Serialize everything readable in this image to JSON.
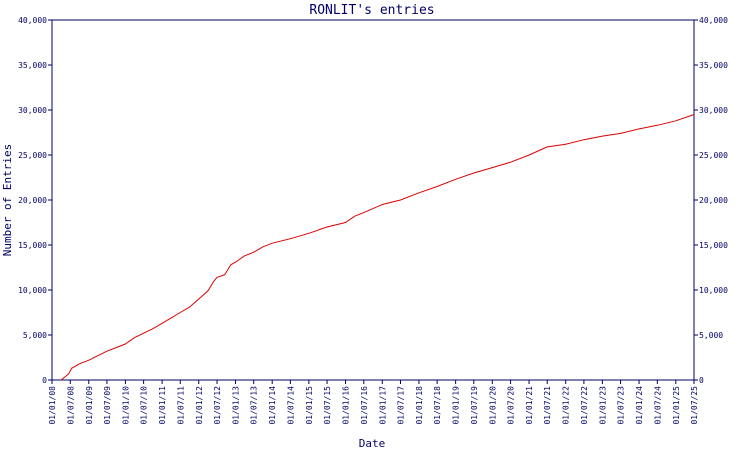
{
  "chart_data": {
    "type": "line",
    "title": "RONLIT's entries",
    "xlabel": "Date",
    "ylabel": "Number of Entries",
    "xlim": [
      "2008-01-01",
      "2025-07-01"
    ],
    "ylim": [
      0,
      40000
    ],
    "y_ticks": [
      0,
      5000,
      10000,
      15000,
      20000,
      25000,
      30000,
      35000,
      40000
    ],
    "y_tick_labels": [
      "0",
      "5,000",
      "10,000",
      "15,000",
      "20,000",
      "25,000",
      "30,000",
      "35,000",
      "40,000"
    ],
    "y_axis_sides": "left-and-right",
    "x_ticks": [
      "2008-01-01",
      "2008-07-01",
      "2009-01-01",
      "2009-07-01",
      "2010-01-01",
      "2010-07-01",
      "2011-01-01",
      "2011-07-01",
      "2012-01-01",
      "2012-07-01",
      "2013-01-01",
      "2013-07-01",
      "2014-01-01",
      "2014-07-01",
      "2015-01-01",
      "2015-07-01",
      "2016-01-01",
      "2016-07-01",
      "2017-01-01",
      "2017-07-01",
      "2018-01-01",
      "2018-07-01",
      "2019-01-01",
      "2019-07-01",
      "2020-01-01",
      "2020-07-01",
      "2021-01-01",
      "2021-07-01",
      "2022-01-01",
      "2022-07-01",
      "2023-01-01",
      "2023-07-01",
      "2024-01-01",
      "2024-07-01",
      "2025-01-01",
      "2025-07-01"
    ],
    "x_tick_labels": [
      "01/01/08",
      "01/07/08",
      "01/01/09",
      "01/07/09",
      "01/01/10",
      "01/07/10",
      "01/01/11",
      "01/07/11",
      "01/01/12",
      "01/07/12",
      "01/01/13",
      "01/07/13",
      "01/01/14",
      "01/07/14",
      "01/01/15",
      "01/07/15",
      "01/01/16",
      "01/07/16",
      "01/01/17",
      "01/07/17",
      "01/01/18",
      "01/07/18",
      "01/01/19",
      "01/07/19",
      "01/01/20",
      "01/07/20",
      "01/01/21",
      "01/07/21",
      "01/01/22",
      "01/07/22",
      "01/01/23",
      "01/07/23",
      "01/01/24",
      "01/07/24",
      "01/01/25",
      "01/07/25"
    ],
    "grid": false,
    "legend": "none",
    "series": [
      {
        "color": "#dd0000",
        "points": [
          [
            "2008-04-01",
            0
          ],
          [
            "2008-05-15",
            400
          ],
          [
            "2008-06-15",
            700
          ],
          [
            "2008-07-15",
            1300
          ],
          [
            "2008-10-01",
            1800
          ],
          [
            "2009-01-01",
            2200
          ],
          [
            "2009-04-01",
            2700
          ],
          [
            "2009-07-01",
            3200
          ],
          [
            "2009-10-01",
            3600
          ],
          [
            "2010-01-01",
            4000
          ],
          [
            "2010-04-01",
            4700
          ],
          [
            "2010-07-01",
            5200
          ],
          [
            "2010-10-01",
            5700
          ],
          [
            "2011-01-01",
            6300
          ],
          [
            "2011-04-01",
            6900
          ],
          [
            "2011-07-01",
            7500
          ],
          [
            "2011-10-01",
            8100
          ],
          [
            "2012-01-01",
            9000
          ],
          [
            "2012-04-01",
            9900
          ],
          [
            "2012-06-01",
            11000
          ],
          [
            "2012-07-01",
            11400
          ],
          [
            "2012-09-15",
            11700
          ],
          [
            "2012-11-15",
            12800
          ],
          [
            "2013-01-01",
            13100
          ],
          [
            "2013-04-01",
            13800
          ],
          [
            "2013-07-01",
            14200
          ],
          [
            "2013-10-01",
            14800
          ],
          [
            "2014-01-01",
            15200
          ],
          [
            "2014-07-01",
            15700
          ],
          [
            "2015-01-01",
            16300
          ],
          [
            "2015-07-01",
            17000
          ],
          [
            "2016-01-01",
            17500
          ],
          [
            "2016-04-01",
            18200
          ],
          [
            "2016-07-01",
            18600
          ],
          [
            "2017-01-01",
            19500
          ],
          [
            "2017-07-01",
            20000
          ],
          [
            "2018-01-01",
            20800
          ],
          [
            "2018-07-01",
            21500
          ],
          [
            "2019-01-01",
            22300
          ],
          [
            "2019-07-01",
            23000
          ],
          [
            "2020-01-01",
            23600
          ],
          [
            "2020-07-01",
            24200
          ],
          [
            "2021-01-01",
            25000
          ],
          [
            "2021-07-01",
            25900
          ],
          [
            "2022-01-01",
            26200
          ],
          [
            "2022-07-01",
            26700
          ],
          [
            "2023-01-01",
            27100
          ],
          [
            "2023-07-01",
            27400
          ],
          [
            "2024-01-01",
            27900
          ],
          [
            "2024-07-01",
            28300
          ],
          [
            "2025-01-01",
            28800
          ],
          [
            "2025-07-01",
            29500
          ]
        ]
      }
    ]
  }
}
